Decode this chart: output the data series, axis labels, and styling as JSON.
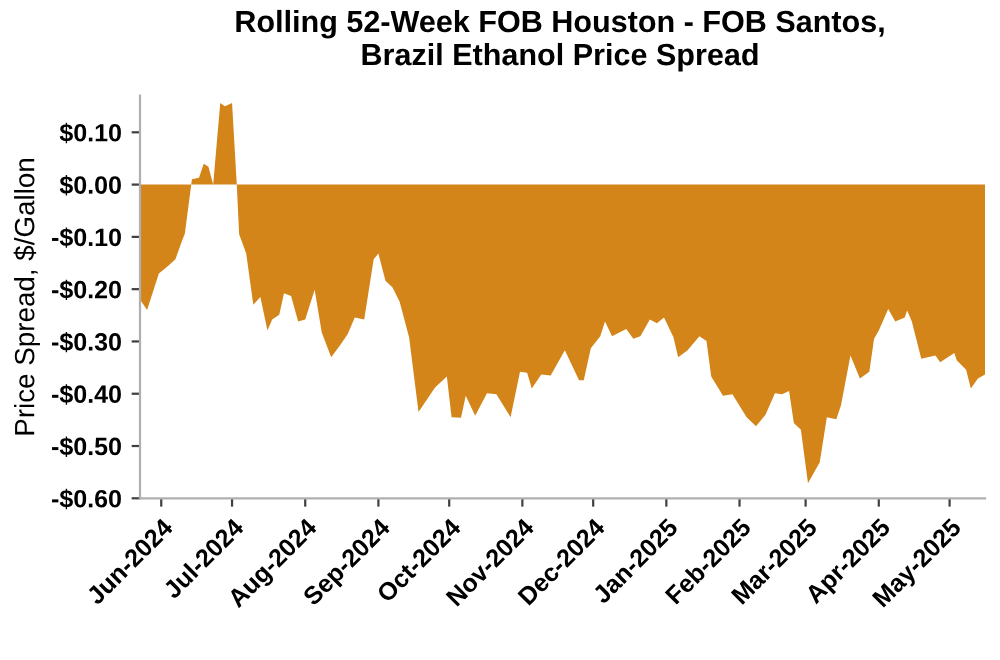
{
  "chart_data": {
    "type": "area",
    "title": "Rolling 52-Week FOB Houston - FOB Santos,\nBrazil Ethanol Price Spread",
    "ylabel": "Price Spread, $/Gallon",
    "color": "#d4851a",
    "grid": false,
    "legend": false,
    "x": [
      "2024-05-23",
      "2024-05-26",
      "2024-05-31",
      "2024-06-04",
      "2024-06-07",
      "2024-06-10",
      "2024-06-11",
      "2024-06-14",
      "2024-06-17",
      "2024-06-19",
      "2024-06-21",
      "2024-06-23",
      "2024-06-26",
      "2024-06-28",
      "2024-07-01",
      "2024-07-03",
      "2024-07-04",
      "2024-07-07",
      "2024-07-10",
      "2024-07-13",
      "2024-07-16",
      "2024-07-18",
      "2024-07-21",
      "2024-07-23",
      "2024-07-26",
      "2024-07-29",
      "2024-08-01",
      "2024-08-05",
      "2024-08-08",
      "2024-08-12",
      "2024-08-16",
      "2024-08-19",
      "2024-08-22",
      "2024-08-26",
      "2024-08-30",
      "2024-09-01",
      "2024-09-04",
      "2024-09-07",
      "2024-09-10",
      "2024-09-14",
      "2024-09-18",
      "2024-09-22",
      "2024-09-25",
      "2024-09-30",
      "2024-10-02",
      "2024-10-06",
      "2024-10-08",
      "2024-10-12",
      "2024-10-17",
      "2024-10-21",
      "2024-10-27",
      "2024-10-31",
      "2024-11-03",
      "2024-11-05",
      "2024-11-09",
      "2024-11-13",
      "2024-11-19",
      "2024-11-25",
      "2024-11-27",
      "2024-11-30",
      "2024-12-04",
      "2024-12-06",
      "2024-12-09",
      "2024-12-15",
      "2024-12-18",
      "2024-12-21",
      "2024-12-25",
      "2024-12-28",
      "2024-12-31",
      "2025-01-04",
      "2025-01-06",
      "2025-01-10",
      "2025-01-15",
      "2025-01-18",
      "2025-01-20",
      "2025-01-25",
      "2025-01-29",
      "2025-02-04",
      "2025-02-08",
      "2025-02-12",
      "2025-02-16",
      "2025-02-19",
      "2025-02-22",
      "2025-02-24",
      "2025-02-27",
      "2025-03-02",
      "2025-03-07",
      "2025-03-10",
      "2025-03-14",
      "2025-03-16",
      "2025-03-20",
      "2025-03-24",
      "2025-03-28",
      "2025-03-30",
      "2025-04-01",
      "2025-04-05",
      "2025-04-08",
      "2025-04-12",
      "2025-04-13",
      "2025-04-15",
      "2025-04-19",
      "2025-04-25",
      "2025-04-27",
      "2025-05-03",
      "2025-05-04",
      "2025-05-08",
      "2025-05-10",
      "2025-05-13",
      "2025-05-16"
    ],
    "values": [
      -0.22,
      -0.24,
      -0.17,
      -0.155,
      -0.143,
      -0.105,
      -0.094,
      0.01,
      0.013,
      0.04,
      0.034,
      0.0,
      0.156,
      0.15,
      0.156,
      0.0,
      -0.095,
      -0.132,
      -0.23,
      -0.215,
      -0.279,
      -0.258,
      -0.249,
      -0.208,
      -0.213,
      -0.262,
      -0.258,
      -0.201,
      -0.283,
      -0.33,
      -0.306,
      -0.286,
      -0.254,
      -0.258,
      -0.143,
      -0.132,
      -0.184,
      -0.197,
      -0.224,
      -0.292,
      -0.435,
      -0.408,
      -0.388,
      -0.367,
      -0.445,
      -0.446,
      -0.404,
      -0.442,
      -0.399,
      -0.401,
      -0.445,
      -0.358,
      -0.36,
      -0.39,
      -0.363,
      -0.365,
      -0.317,
      -0.374,
      -0.374,
      -0.313,
      -0.29,
      -0.262,
      -0.29,
      -0.276,
      -0.295,
      -0.29,
      -0.258,
      -0.265,
      -0.254,
      -0.292,
      -0.33,
      -0.317,
      -0.29,
      -0.299,
      -0.367,
      -0.404,
      -0.401,
      -0.445,
      -0.462,
      -0.44,
      -0.399,
      -0.401,
      -0.395,
      -0.456,
      -0.469,
      -0.571,
      -0.531,
      -0.445,
      -0.449,
      -0.422,
      -0.327,
      -0.371,
      -0.358,
      -0.295,
      -0.279,
      -0.238,
      -0.262,
      -0.254,
      -0.241,
      -0.262,
      -0.333,
      -0.327,
      -0.34,
      -0.322,
      -0.336,
      -0.354,
      -0.39,
      -0.371,
      -0.363
    ],
    "xlim": [
      "2024-05-23",
      "2025-05-16"
    ],
    "xticks": [
      {
        "value": "2024-06-01",
        "label": "Jun-2024"
      },
      {
        "value": "2024-07-01",
        "label": "Jul-2024"
      },
      {
        "value": "2024-08-01",
        "label": "Aug-2024"
      },
      {
        "value": "2024-09-01",
        "label": "Sep-2024"
      },
      {
        "value": "2024-10-01",
        "label": "Oct-2024"
      },
      {
        "value": "2024-11-01",
        "label": "Nov-2024"
      },
      {
        "value": "2024-12-01",
        "label": "Dec-2024"
      },
      {
        "value": "2025-01-01",
        "label": "Jan-2025"
      },
      {
        "value": "2025-02-01",
        "label": "Feb-2025"
      },
      {
        "value": "2025-03-01",
        "label": "Mar-2025"
      },
      {
        "value": "2025-04-01",
        "label": "Apr-2025"
      },
      {
        "value": "2025-05-01",
        "label": "May-2025"
      }
    ],
    "ylim": [
      -0.6,
      0.17
    ],
    "yticks": [
      {
        "value": 0.1,
        "label": "$0.10"
      },
      {
        "value": 0.0,
        "label": "$0.00"
      },
      {
        "value": -0.1,
        "label": "-$0.10"
      },
      {
        "value": -0.2,
        "label": "-$0.20"
      },
      {
        "value": -0.3,
        "label": "-$0.30"
      },
      {
        "value": -0.4,
        "label": "-$0.40"
      },
      {
        "value": -0.5,
        "label": "-$0.50"
      },
      {
        "value": -0.6,
        "label": "-$0.60"
      }
    ]
  }
}
